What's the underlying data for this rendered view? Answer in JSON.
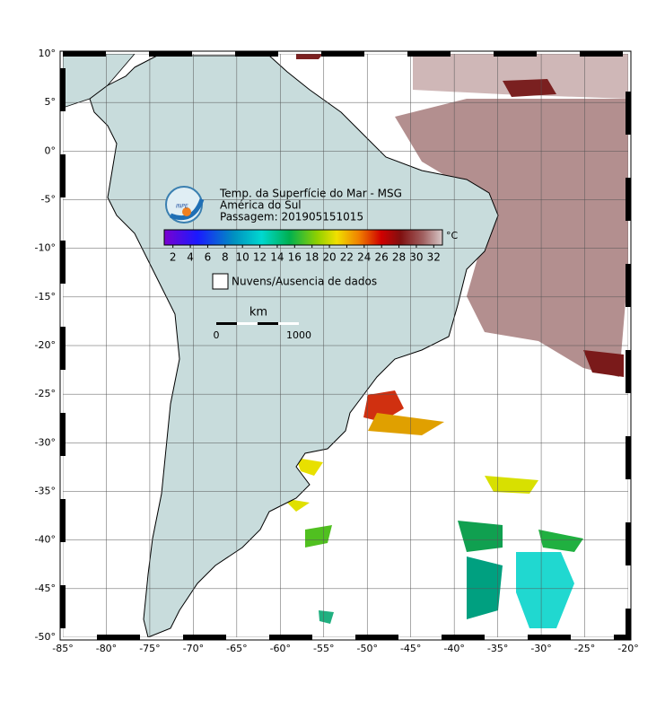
{
  "map": {
    "lon_ticks": [
      {
        "value": -85,
        "label": "-85°"
      },
      {
        "value": -80,
        "label": "-80°"
      },
      {
        "value": -75,
        "label": "-75°"
      },
      {
        "value": -70,
        "label": "-70°"
      },
      {
        "value": -65,
        "label": "-65°"
      },
      {
        "value": -60,
        "label": "-60°"
      },
      {
        "value": -55,
        "label": "-55°"
      },
      {
        "value": -50,
        "label": "-50°"
      },
      {
        "value": -45,
        "label": "-45°"
      },
      {
        "value": -40,
        "label": "-40°"
      },
      {
        "value": -35,
        "label": "-35°"
      },
      {
        "value": -30,
        "label": "-30°"
      },
      {
        "value": -25,
        "label": "-25°"
      },
      {
        "value": -20,
        "label": "-20°"
      }
    ],
    "lat_ticks": [
      {
        "value": 10,
        "label": "10°"
      },
      {
        "value": 5,
        "label": "5°"
      },
      {
        "value": 0,
        "label": "0°"
      },
      {
        "value": -5,
        "label": "-5°"
      },
      {
        "value": -10,
        "label": "-10°"
      },
      {
        "value": -15,
        "label": "-15°"
      },
      {
        "value": -20,
        "label": "-20°"
      },
      {
        "value": -25,
        "label": "-25°"
      },
      {
        "value": -30,
        "label": "-30°"
      },
      {
        "value": -35,
        "label": "-35°"
      },
      {
        "value": -40,
        "label": "-40°"
      },
      {
        "value": -45,
        "label": "-45°"
      },
      {
        "value": -50,
        "label": "-50°"
      }
    ]
  },
  "legend": {
    "logo_text": "INPE",
    "title": "Temp. da Superfície do Mar - MSG",
    "region": "América do Sul",
    "pass": "Passagem: 201905151015",
    "colorbar": {
      "range": [
        1,
        33
      ],
      "ticks": [
        2,
        4,
        6,
        8,
        10,
        12,
        14,
        16,
        18,
        20,
        22,
        24,
        26,
        28,
        30,
        32
      ],
      "unit": "°C"
    },
    "clouds": "Nuvens/Ausencia de dados",
    "scale": {
      "unit": "km",
      "start": "0",
      "end": "1000"
    }
  }
}
